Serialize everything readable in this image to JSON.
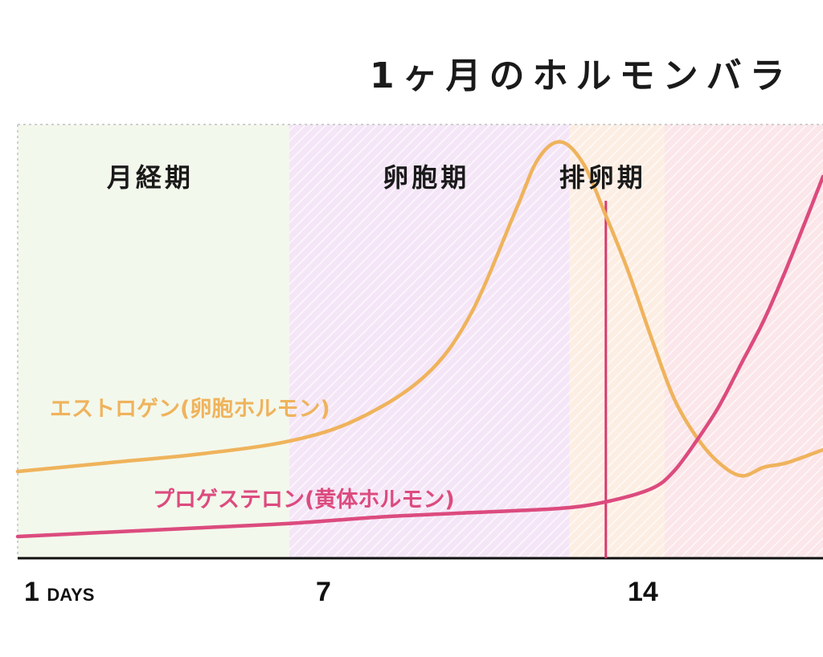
{
  "chart_data": {
    "type": "line",
    "title": "1ヶ月のホルモンバラ",
    "x_unit": "DAYS",
    "x_ticks": [
      {
        "value": 1,
        "label": "1"
      },
      {
        "value": 7,
        "label": "7"
      },
      {
        "value": 14,
        "label": "14"
      }
    ],
    "xlim": [
      1,
      18.8
    ],
    "ylim": [
      0,
      100
    ],
    "grid": false,
    "phases": [
      {
        "name": "月経期",
        "start": 1,
        "end": 7,
        "color": "#f3f8ec"
      },
      {
        "name": "卵胞期",
        "start": 7,
        "end": 13.2,
        "color": "#f4e6f7"
      },
      {
        "name": "排卵期",
        "start": 13.2,
        "end": 15.3,
        "color": "#fdeee4"
      },
      {
        "name": "",
        "start": 15.3,
        "end": 18.8,
        "color": "#fbe6ea"
      }
    ],
    "marker": {
      "x": 14,
      "color": "#d63c6d"
    },
    "series": [
      {
        "name": "エストロゲン(卵胞ホルモン)",
        "color": "#efb35c",
        "points": [
          [
            1,
            20
          ],
          [
            3,
            22
          ],
          [
            5,
            24
          ],
          [
            7,
            27
          ],
          [
            8.5,
            32
          ],
          [
            10,
            42
          ],
          [
            11,
            56
          ],
          [
            12,
            80
          ],
          [
            12.5,
            92
          ],
          [
            13,
            96
          ],
          [
            13.5,
            91
          ],
          [
            14,
            79
          ],
          [
            14.5,
            66
          ],
          [
            15,
            51
          ],
          [
            15.5,
            37
          ],
          [
            16,
            28
          ],
          [
            16.5,
            22
          ],
          [
            17,
            19
          ],
          [
            17.5,
            21
          ],
          [
            18,
            22
          ],
          [
            18.8,
            25
          ]
        ]
      },
      {
        "name": "プロゲステロン(黄体ホルモン)",
        "color": "#dc4b7e",
        "points": [
          [
            1,
            5
          ],
          [
            3,
            6
          ],
          [
            5,
            7
          ],
          [
            7,
            8
          ],
          [
            9,
            9.5
          ],
          [
            11,
            10.5
          ],
          [
            13,
            11.5
          ],
          [
            14,
            13
          ],
          [
            15,
            16
          ],
          [
            15.5,
            20
          ],
          [
            16,
            27
          ],
          [
            16.5,
            35
          ],
          [
            17,
            45
          ],
          [
            17.5,
            55
          ],
          [
            18,
            67
          ],
          [
            18.5,
            80
          ],
          [
            18.8,
            88
          ]
        ]
      }
    ]
  }
}
